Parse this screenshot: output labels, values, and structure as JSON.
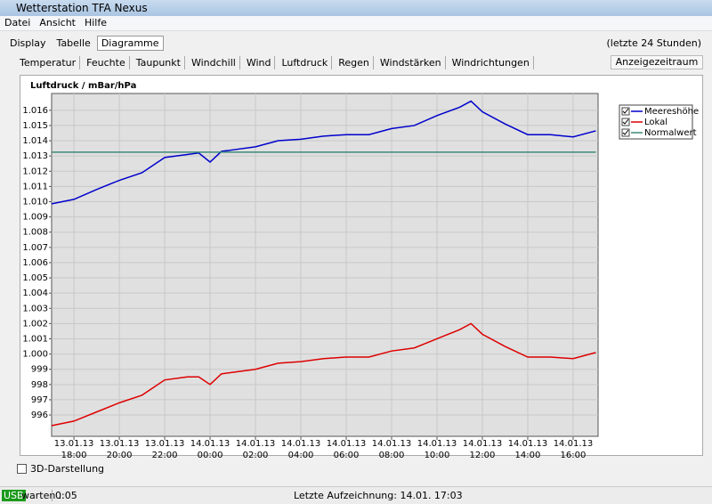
{
  "window": {
    "title": "Wetterstation TFA Nexus"
  },
  "menu": [
    "Datei",
    "Ansicht",
    "Hilfe"
  ],
  "tabs": [
    "Display",
    "Tabelle",
    "Diagramme"
  ],
  "range_note": "(letzte 24 Stunden)",
  "subtabs": [
    "Temperatur",
    "Feuchte",
    "Taupunkt",
    "Windchill",
    "Wind",
    "Luftdruck",
    "Regen",
    "Windstärken",
    "Windrichtungen"
  ],
  "button": "Anzeigezeitraum",
  "checkbox": "3D-Darstellung",
  "status": {
    "port": "USB",
    "state": "warten ..",
    "timer": "0:05",
    "last_record": "Letzte Aufzeichnung: 14.01. 17:03"
  },
  "chart_data": {
    "type": "line",
    "title": "Luftdruck / mBar/hPa",
    "x": [
      "2013-01-13T17:01",
      "2013-01-13T18:00",
      "2013-01-13T19:00",
      "2013-01-13T20:00",
      "2013-01-13T21:00",
      "2013-01-13T22:00",
      "2013-01-13T23:00",
      "2013-01-13T23:30",
      "2013-01-14T00:00",
      "2013-01-14T00:30",
      "2013-01-14T01:00",
      "2013-01-14T02:00",
      "2013-01-14T03:00",
      "2013-01-14T04:00",
      "2013-01-14T05:00",
      "2013-01-14T06:00",
      "2013-01-14T07:00",
      "2013-01-14T08:00",
      "2013-01-14T09:00",
      "2013-01-14T10:00",
      "2013-01-14T11:00",
      "2013-01-14T11:30",
      "2013-01-14T12:00",
      "2013-01-14T13:00",
      "2013-01-14T14:00",
      "2013-01-14T15:00",
      "2013-01-14T16:00",
      "2013-01-14T17:00"
    ],
    "series": [
      {
        "name": "Meereshöhe",
        "color": "#0000cc",
        "values": [
          1009.86,
          1010.15,
          1010.8,
          1011.4,
          1011.9,
          1012.9,
          1013.1,
          1013.2,
          1012.6,
          1013.3,
          1013.4,
          1013.6,
          1014.0,
          1014.1,
          1014.3,
          1014.4,
          1014.4,
          1014.8,
          1015.0,
          1015.65,
          1016.2,
          1016.6,
          1015.9,
          1015.1,
          1014.4,
          1014.4,
          1014.25,
          1014.65
        ]
      },
      {
        "name": "Lokal",
        "color": "#dd0000",
        "values": [
          995.3,
          995.6,
          996.2,
          996.8,
          997.3,
          998.3,
          998.5,
          998.5,
          998.0,
          998.7,
          998.8,
          999.0,
          999.4,
          999.5,
          999.7,
          999.8,
          999.8,
          1000.2,
          1000.4,
          1001.0,
          1001.6,
          1002.0,
          1001.3,
          1000.5,
          999.8,
          999.8,
          999.7,
          1000.1
        ]
      },
      {
        "name": "Normalwert",
        "color": "#3a8a7a",
        "values": [
          1013.25,
          1013.25,
          1013.25,
          1013.25,
          1013.25,
          1013.25,
          1013.25,
          1013.25,
          1013.25,
          1013.25,
          1013.25,
          1013.25,
          1013.25,
          1013.25,
          1013.25,
          1013.25,
          1013.25,
          1013.25,
          1013.25,
          1013.25,
          1013.25,
          1013.25,
          1013.25,
          1013.25,
          1013.25,
          1013.25,
          1013.25,
          1013.25
        ]
      }
    ],
    "xlim": [
      "2013-01-13T17:01",
      "2013-01-14T17:06"
    ],
    "xticks": [
      {
        "value": "2013-01-13T18:00",
        "label": "13.01.13 18:00"
      },
      {
        "value": "2013-01-13T20:00",
        "label": "13.01.13 20:00"
      },
      {
        "value": "2013-01-13T22:00",
        "label": "13.01.13 22:00"
      },
      {
        "value": "2013-01-14T00:00",
        "label": "14.01.13 00:00"
      },
      {
        "value": "2013-01-14T02:00",
        "label": "14.01.13 02:00"
      },
      {
        "value": "2013-01-14T04:00",
        "label": "14.01.13 04:00"
      },
      {
        "value": "2013-01-14T06:00",
        "label": "14.01.13 06:00"
      },
      {
        "value": "2013-01-14T08:00",
        "label": "14.01.13 08:00"
      },
      {
        "value": "2013-01-14T10:00",
        "label": "14.01.13 10:00"
      },
      {
        "value": "2013-01-14T12:00",
        "label": "14.01.13 12:00"
      },
      {
        "value": "2013-01-14T14:00",
        "label": "14.01.13 14:00"
      },
      {
        "value": "2013-01-14T16:00",
        "label": "14.01.13 16:00"
      }
    ],
    "ylim": [
      994.6,
      1017.1
    ],
    "yticks": [
      996,
      997,
      998,
      999,
      {
        "value": 1000,
        "label": "1.000"
      },
      {
        "value": 1001,
        "label": "1.001"
      },
      {
        "value": 1002,
        "label": "1.002"
      },
      {
        "value": 1003,
        "label": "1.003"
      },
      {
        "value": 1004,
        "label": "1.004"
      },
      {
        "value": 1005,
        "label": "1.005"
      },
      {
        "value": 1006,
        "label": "1.006"
      },
      {
        "value": 1007,
        "label": "1.007"
      },
      {
        "value": 1008,
        "label": "1.008"
      },
      {
        "value": 1009,
        "label": "1.009"
      },
      {
        "value": 1010,
        "label": "1.010"
      },
      {
        "value": 1011,
        "label": "1.011"
      },
      {
        "value": 1012,
        "label": "1.012"
      },
      {
        "value": 1013,
        "label": "1.013"
      },
      {
        "value": 1014,
        "label": "1.014"
      },
      {
        "value": 1015,
        "label": "1.015"
      },
      {
        "value": 1016,
        "label": "1.016"
      }
    ],
    "grid": true,
    "legend": "top-right"
  }
}
